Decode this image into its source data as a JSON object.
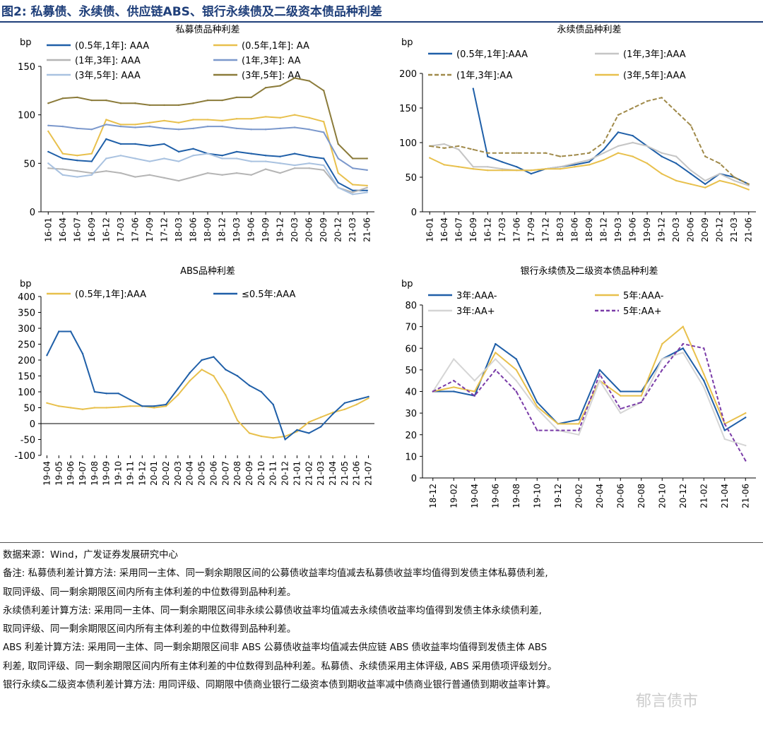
{
  "figure": {
    "title": "图2: 私募债、永续债、供应链ABS、银行永续债及二级资本债品种利差",
    "watermark": "郁言债市"
  },
  "notes": [
    "数据来源：Wind，广发证券发展研究中心",
    "备注: 私募债利差计算方法: 采用同一主体、同一剩余期限区间的公募债收益率均值减去私募债收益率均值得到发债主体私募债利差,",
    "取同评级、同一剩余期限区间内所有主体利差的中位数得到品种利差。",
    "永续债利差计算方法: 采用同一主体、同一剩余期限区间非永续公募债收益率均值减去永续债收益率均值得到发债主体永续债利差,",
    "取同评级、同一剩余期限区间内所有主体利差的中位数得到品种利差。",
    "ABS 利差计算方法: 采用同一主体、同一剩余期限区间非 ABS 公募债收益率均值减去供应链 ABS 债收益率均值得到发债主体 ABS",
    "利差, 取同评级、同一剩余期限区间内所有主体利差的中位数得到品种利差。私募债、永续债采用主体评级, ABS 采用债项评级划分。",
    "银行永续&二级资本债利差计算方法: 用同评级、同期限中债商业银行二级资本债到期收益率减中债商业银行普通债到期收益率计算。"
  ],
  "chart_data": [
    {
      "id": "c1",
      "type": "line",
      "title": "私募债品种利差",
      "ylabel": "bp",
      "ylim": [
        0,
        150
      ],
      "yticks": [
        0,
        50,
        100,
        150
      ],
      "categories": [
        "16-01",
        "16-04",
        "16-07",
        "16-09",
        "16-12",
        "17-03",
        "17-06",
        "17-09",
        "17-12",
        "18-03",
        "18-06",
        "18-09",
        "18-12",
        "19-03",
        "19-06",
        "19-09",
        "19-12",
        "20-03",
        "20-06",
        "20-09",
        "20-12",
        "21-03",
        "21-06"
      ],
      "legend_columns": 2,
      "series": [
        {
          "name": "(0.5年,1年]: AAA",
          "color": "#1f5fa8",
          "dash": "",
          "values": [
            62,
            55,
            53,
            52,
            75,
            70,
            70,
            68,
            70,
            62,
            65,
            60,
            58,
            62,
            60,
            58,
            57,
            60,
            57,
            55,
            30,
            22,
            22
          ]
        },
        {
          "name": "(0.5年,1年]: AA",
          "color": "#e8c04c",
          "dash": "",
          "values": [
            83,
            60,
            58,
            60,
            95,
            90,
            90,
            92,
            94,
            92,
            95,
            95,
            94,
            96,
            96,
            98,
            97,
            100,
            97,
            93,
            40,
            28,
            27
          ]
        },
        {
          "name": "(1年,3年]: AAA",
          "color": "#b5b5b5",
          "dash": "",
          "values": [
            45,
            44,
            42,
            40,
            42,
            40,
            36,
            38,
            35,
            32,
            36,
            40,
            38,
            40,
            38,
            44,
            40,
            45,
            45,
            43,
            25,
            20,
            25
          ]
        },
        {
          "name": "(1年,3年]: AA",
          "color": "#7b98cc",
          "dash": "",
          "values": [
            89,
            88,
            86,
            85,
            90,
            88,
            87,
            88,
            86,
            85,
            86,
            88,
            88,
            86,
            85,
            85,
            86,
            87,
            85,
            82,
            55,
            45,
            43
          ]
        },
        {
          "name": "(3年,5年]: AAA",
          "color": "#a9c2e0",
          "dash": "",
          "values": [
            50,
            38,
            36,
            38,
            55,
            58,
            55,
            52,
            55,
            52,
            58,
            60,
            55,
            55,
            52,
            52,
            50,
            48,
            50,
            48,
            25,
            18,
            20
          ]
        },
        {
          "name": "(3年,5年]: AA",
          "color": "#8b7b3a",
          "dash": "",
          "values": [
            112,
            117,
            118,
            115,
            115,
            112,
            112,
            110,
            110,
            110,
            112,
            115,
            115,
            118,
            118,
            128,
            130,
            138,
            135,
            125,
            70,
            55,
            55
          ]
        }
      ]
    },
    {
      "id": "c2",
      "type": "line",
      "title": "永续债品种利差",
      "ylabel": "bp",
      "ylim": [
        0,
        200
      ],
      "yticks": [
        0,
        50,
        100,
        150,
        200
      ],
      "categories": [
        "16-01",
        "16-04",
        "16-07",
        "16-09",
        "16-12",
        "17-03",
        "17-06",
        "17-09",
        "17-12",
        "18-03",
        "18-06",
        "18-09",
        "18-12",
        "19-03",
        "19-06",
        "19-09",
        "19-12",
        "20-03",
        "20-06",
        "20-09",
        "20-12",
        "21-03",
        "21-06"
      ],
      "legend_columns": 2,
      "series": [
        {
          "name": "(0.5年,1年]:AAA",
          "color": "#1f5fa8",
          "dash": "",
          "start": 3,
          "values": [
            null,
            null,
            null,
            178,
            80,
            72,
            65,
            55,
            62,
            65,
            68,
            72,
            90,
            115,
            110,
            95,
            80,
            70,
            55,
            40,
            55,
            50,
            40
          ]
        },
        {
          "name": "(1年,3年]:AAA",
          "color": "#c5c5c5",
          "dash": "",
          "values": [
            95,
            98,
            90,
            65,
            65,
            62,
            60,
            60,
            62,
            65,
            70,
            75,
            85,
            95,
            100,
            95,
            85,
            80,
            60,
            45,
            55,
            45,
            38
          ]
        },
        {
          "name": "(1年,3年]:AA",
          "color": "#a08a4a",
          "dash": "6,3",
          "values": [
            95,
            92,
            95,
            90,
            85,
            85,
            85,
            85,
            85,
            80,
            82,
            85,
            100,
            140,
            150,
            160,
            165,
            145,
            125,
            80,
            70,
            50,
            40
          ]
        },
        {
          "name": "(3年,5年]:AAA",
          "color": "#e8c04c",
          "dash": "",
          "values": [
            78,
            68,
            65,
            62,
            60,
            60,
            60,
            60,
            62,
            62,
            65,
            68,
            75,
            85,
            80,
            70,
            55,
            45,
            40,
            35,
            45,
            40,
            32
          ]
        }
      ]
    },
    {
      "id": "c3",
      "type": "line",
      "title": "ABS品种利差",
      "ylabel": "bp",
      "ylim": [
        -100,
        400
      ],
      "yticks": [
        -100,
        -50,
        0,
        50,
        100,
        150,
        200,
        250,
        300,
        350,
        400
      ],
      "categories": [
        "19-04",
        "19-05",
        "19-06",
        "19-07",
        "19-08",
        "19-09",
        "19-10",
        "19-11",
        "19-12",
        "20-01",
        "20-02",
        "20-03",
        "20-04",
        "20-05",
        "20-06",
        "20-07",
        "20-08",
        "20-09",
        "20-10",
        "20-11",
        "20-12",
        "21-01",
        "21-02",
        "21-03",
        "21-04",
        "21-05",
        "21-06",
        "21-07"
      ],
      "legend_columns": 2,
      "series": [
        {
          "name": "(0.5年,1年]:AAA",
          "color": "#e8c04c",
          "dash": "",
          "values": [
            65,
            55,
            50,
            45,
            50,
            50,
            52,
            55,
            55,
            50,
            55,
            90,
            135,
            170,
            150,
            90,
            10,
            -30,
            -40,
            -45,
            -40,
            -25,
            5,
            20,
            35,
            45,
            60,
            80
          ]
        },
        {
          "name": "≤0.5年:AAA",
          "color": "#1f5fa8",
          "dash": "",
          "values": [
            215,
            290,
            290,
            220,
            100,
            95,
            95,
            75,
            55,
            55,
            60,
            110,
            160,
            200,
            210,
            170,
            150,
            120,
            100,
            60,
            -50,
            -20,
            -30,
            -10,
            30,
            65,
            75,
            85
          ]
        }
      ]
    },
    {
      "id": "c4",
      "type": "line",
      "title": "银行永续债及二级资本债品种利差",
      "ylabel": "bp",
      "ylim": [
        0,
        80
      ],
      "yticks": [
        0,
        10,
        20,
        30,
        40,
        50,
        60,
        70,
        80
      ],
      "categories": [
        "18-12",
        "19-02",
        "19-04",
        "19-06",
        "19-08",
        "19-10",
        "19-12",
        "20-02",
        "20-04",
        "20-06",
        "20-08",
        "20-10",
        "20-12",
        "21-02",
        "21-04",
        "21-06"
      ],
      "legend_columns": 2,
      "series": [
        {
          "name": "3年:AAA-",
          "color": "#1f5fa8",
          "dash": "",
          "values": [
            40,
            40,
            38,
            62,
            55,
            35,
            25,
            27,
            50,
            40,
            40,
            55,
            60,
            45,
            22,
            28
          ]
        },
        {
          "name": "5年:AAA-",
          "color": "#e8c04c",
          "dash": "",
          "values": [
            40,
            42,
            40,
            58,
            50,
            33,
            25,
            25,
            45,
            38,
            38,
            62,
            70,
            48,
            25,
            30
          ]
        },
        {
          "name": "3年:AA+",
          "color": "#d5d5d5",
          "dash": "",
          "values": [
            40,
            55,
            45,
            55,
            45,
            32,
            22,
            20,
            45,
            30,
            35,
            55,
            58,
            42,
            18,
            15
          ]
        },
        {
          "name": "5年:AA+",
          "color": "#7a3ca8",
          "dash": "5,3",
          "values": [
            40,
            45,
            38,
            50,
            40,
            22,
            22,
            22,
            48,
            32,
            35,
            50,
            62,
            60,
            25,
            8
          ]
        }
      ]
    }
  ]
}
